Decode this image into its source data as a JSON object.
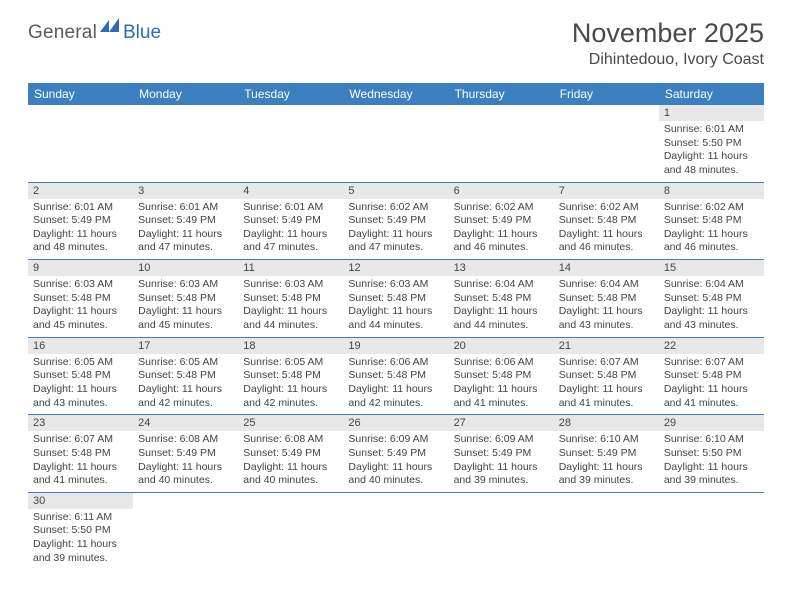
{
  "logo": {
    "word1": "General",
    "word2": "Blue"
  },
  "title": "November 2025",
  "location": "Dihintedouo, Ivory Coast",
  "colors": {
    "header_bg": "#3b7fbf",
    "row_divider": "#3b7fbf",
    "daynum_bg": "#e8e8e8",
    "text": "#444444"
  },
  "weekdays": [
    "Sunday",
    "Monday",
    "Tuesday",
    "Wednesday",
    "Thursday",
    "Friday",
    "Saturday"
  ],
  "weeks": [
    [
      null,
      null,
      null,
      null,
      null,
      null,
      {
        "n": "1",
        "sr": "Sunrise: 6:01 AM",
        "ss": "Sunset: 5:50 PM",
        "dl1": "Daylight: 11 hours",
        "dl2": "and 48 minutes."
      }
    ],
    [
      {
        "n": "2",
        "sr": "Sunrise: 6:01 AM",
        "ss": "Sunset: 5:49 PM",
        "dl1": "Daylight: 11 hours",
        "dl2": "and 48 minutes."
      },
      {
        "n": "3",
        "sr": "Sunrise: 6:01 AM",
        "ss": "Sunset: 5:49 PM",
        "dl1": "Daylight: 11 hours",
        "dl2": "and 47 minutes."
      },
      {
        "n": "4",
        "sr": "Sunrise: 6:01 AM",
        "ss": "Sunset: 5:49 PM",
        "dl1": "Daylight: 11 hours",
        "dl2": "and 47 minutes."
      },
      {
        "n": "5",
        "sr": "Sunrise: 6:02 AM",
        "ss": "Sunset: 5:49 PM",
        "dl1": "Daylight: 11 hours",
        "dl2": "and 47 minutes."
      },
      {
        "n": "6",
        "sr": "Sunrise: 6:02 AM",
        "ss": "Sunset: 5:49 PM",
        "dl1": "Daylight: 11 hours",
        "dl2": "and 46 minutes."
      },
      {
        "n": "7",
        "sr": "Sunrise: 6:02 AM",
        "ss": "Sunset: 5:48 PM",
        "dl1": "Daylight: 11 hours",
        "dl2": "and 46 minutes."
      },
      {
        "n": "8",
        "sr": "Sunrise: 6:02 AM",
        "ss": "Sunset: 5:48 PM",
        "dl1": "Daylight: 11 hours",
        "dl2": "and 46 minutes."
      }
    ],
    [
      {
        "n": "9",
        "sr": "Sunrise: 6:03 AM",
        "ss": "Sunset: 5:48 PM",
        "dl1": "Daylight: 11 hours",
        "dl2": "and 45 minutes."
      },
      {
        "n": "10",
        "sr": "Sunrise: 6:03 AM",
        "ss": "Sunset: 5:48 PM",
        "dl1": "Daylight: 11 hours",
        "dl2": "and 45 minutes."
      },
      {
        "n": "11",
        "sr": "Sunrise: 6:03 AM",
        "ss": "Sunset: 5:48 PM",
        "dl1": "Daylight: 11 hours",
        "dl2": "and 44 minutes."
      },
      {
        "n": "12",
        "sr": "Sunrise: 6:03 AM",
        "ss": "Sunset: 5:48 PM",
        "dl1": "Daylight: 11 hours",
        "dl2": "and 44 minutes."
      },
      {
        "n": "13",
        "sr": "Sunrise: 6:04 AM",
        "ss": "Sunset: 5:48 PM",
        "dl1": "Daylight: 11 hours",
        "dl2": "and 44 minutes."
      },
      {
        "n": "14",
        "sr": "Sunrise: 6:04 AM",
        "ss": "Sunset: 5:48 PM",
        "dl1": "Daylight: 11 hours",
        "dl2": "and 43 minutes."
      },
      {
        "n": "15",
        "sr": "Sunrise: 6:04 AM",
        "ss": "Sunset: 5:48 PM",
        "dl1": "Daylight: 11 hours",
        "dl2": "and 43 minutes."
      }
    ],
    [
      {
        "n": "16",
        "sr": "Sunrise: 6:05 AM",
        "ss": "Sunset: 5:48 PM",
        "dl1": "Daylight: 11 hours",
        "dl2": "and 43 minutes."
      },
      {
        "n": "17",
        "sr": "Sunrise: 6:05 AM",
        "ss": "Sunset: 5:48 PM",
        "dl1": "Daylight: 11 hours",
        "dl2": "and 42 minutes."
      },
      {
        "n": "18",
        "sr": "Sunrise: 6:05 AM",
        "ss": "Sunset: 5:48 PM",
        "dl1": "Daylight: 11 hours",
        "dl2": "and 42 minutes."
      },
      {
        "n": "19",
        "sr": "Sunrise: 6:06 AM",
        "ss": "Sunset: 5:48 PM",
        "dl1": "Daylight: 11 hours",
        "dl2": "and 42 minutes."
      },
      {
        "n": "20",
        "sr": "Sunrise: 6:06 AM",
        "ss": "Sunset: 5:48 PM",
        "dl1": "Daylight: 11 hours",
        "dl2": "and 41 minutes."
      },
      {
        "n": "21",
        "sr": "Sunrise: 6:07 AM",
        "ss": "Sunset: 5:48 PM",
        "dl1": "Daylight: 11 hours",
        "dl2": "and 41 minutes."
      },
      {
        "n": "22",
        "sr": "Sunrise: 6:07 AM",
        "ss": "Sunset: 5:48 PM",
        "dl1": "Daylight: 11 hours",
        "dl2": "and 41 minutes."
      }
    ],
    [
      {
        "n": "23",
        "sr": "Sunrise: 6:07 AM",
        "ss": "Sunset: 5:48 PM",
        "dl1": "Daylight: 11 hours",
        "dl2": "and 41 minutes."
      },
      {
        "n": "24",
        "sr": "Sunrise: 6:08 AM",
        "ss": "Sunset: 5:49 PM",
        "dl1": "Daylight: 11 hours",
        "dl2": "and 40 minutes."
      },
      {
        "n": "25",
        "sr": "Sunrise: 6:08 AM",
        "ss": "Sunset: 5:49 PM",
        "dl1": "Daylight: 11 hours",
        "dl2": "and 40 minutes."
      },
      {
        "n": "26",
        "sr": "Sunrise: 6:09 AM",
        "ss": "Sunset: 5:49 PM",
        "dl1": "Daylight: 11 hours",
        "dl2": "and 40 minutes."
      },
      {
        "n": "27",
        "sr": "Sunrise: 6:09 AM",
        "ss": "Sunset: 5:49 PM",
        "dl1": "Daylight: 11 hours",
        "dl2": "and 39 minutes."
      },
      {
        "n": "28",
        "sr": "Sunrise: 6:10 AM",
        "ss": "Sunset: 5:49 PM",
        "dl1": "Daylight: 11 hours",
        "dl2": "and 39 minutes."
      },
      {
        "n": "29",
        "sr": "Sunrise: 6:10 AM",
        "ss": "Sunset: 5:50 PM",
        "dl1": "Daylight: 11 hours",
        "dl2": "and 39 minutes."
      }
    ],
    [
      {
        "n": "30",
        "sr": "Sunrise: 6:11 AM",
        "ss": "Sunset: 5:50 PM",
        "dl1": "Daylight: 11 hours",
        "dl2": "and 39 minutes."
      },
      null,
      null,
      null,
      null,
      null,
      null
    ]
  ]
}
